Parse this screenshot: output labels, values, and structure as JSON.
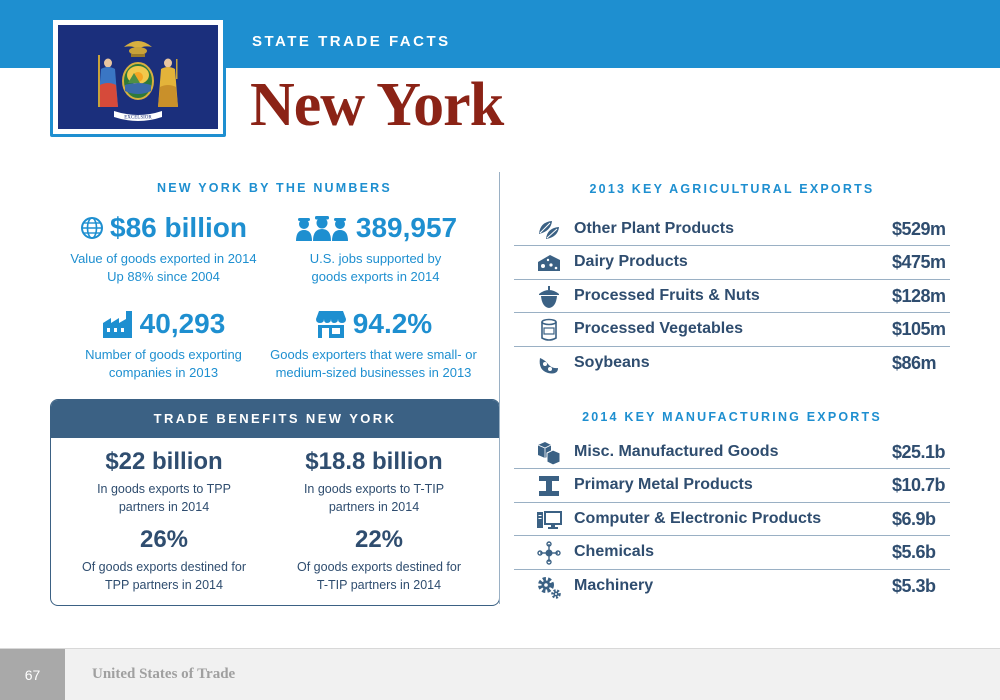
{
  "header": {
    "kicker": "STATE TRADE FACTS",
    "state_name": "New York",
    "flag_motto": "EXCELSIOR"
  },
  "by_the_numbers": {
    "heading": "NEW YORK BY THE NUMBERS",
    "stats": [
      {
        "icon": "globe-icon",
        "value": "$86 billion",
        "line1": "Value of goods exported in 2014",
        "line2": "Up 88% since 2004"
      },
      {
        "icon": "workers-icon",
        "value": "389,957",
        "line1": "U.S. jobs supported by",
        "line2": "goods exports in 2014"
      },
      {
        "icon": "factory-icon",
        "value": "40,293",
        "line1": "Number of goods exporting",
        "line2": "companies in 2013"
      },
      {
        "icon": "storefront-icon",
        "value": "94.2%",
        "line1": "Goods exporters that were small- or",
        "line2": "medium-sized businesses in 2013"
      }
    ]
  },
  "trade_benefits": {
    "heading": "TRADE BENEFITS NEW YORK",
    "stats": [
      {
        "value": "$22 billion",
        "line1": "In goods exports to TPP",
        "line2": "partners in 2014"
      },
      {
        "value": "$18.8 billion",
        "line1": "In goods exports to T-TIP",
        "line2": "partners in 2014"
      },
      {
        "value": "26%",
        "line1": "Of goods exports destined for",
        "line2": "TPP partners in 2014"
      },
      {
        "value": "22%",
        "line1": "Of goods exports destined for",
        "line2": "T-TIP partners in 2014"
      }
    ]
  },
  "agricultural": {
    "heading": "2013 KEY AGRICULTURAL EXPORTS",
    "rows": [
      {
        "icon": "leaves-icon",
        "label": "Other Plant Products",
        "value": "$529m"
      },
      {
        "icon": "cheese-icon",
        "label": "Dairy Products",
        "value": "$475m"
      },
      {
        "icon": "acorn-icon",
        "label": "Processed Fruits & Nuts",
        "value": "$128m"
      },
      {
        "icon": "can-icon",
        "label": "Processed Vegetables",
        "value": "$105m"
      },
      {
        "icon": "soybean-icon",
        "label": "Soybeans",
        "value": "$86m"
      }
    ]
  },
  "manufacturing": {
    "heading": "2014 KEY MANUFACTURING EXPORTS",
    "rows": [
      {
        "icon": "boxes-icon",
        "label": "Misc. Manufactured Goods",
        "value": "$25.1b"
      },
      {
        "icon": "i-beam-icon",
        "label": "Primary Metal Products",
        "value": "$10.7b"
      },
      {
        "icon": "computer-icon",
        "label": "Computer & Electronic Products",
        "value": "$6.9b"
      },
      {
        "icon": "molecule-icon",
        "label": "Chemicals",
        "value": "$5.6b"
      },
      {
        "icon": "gears-icon",
        "label": "Machinery",
        "value": "$5.3b"
      }
    ]
  },
  "footer": {
    "page_number": "67",
    "publication": "United States of Trade"
  },
  "colors": {
    "accent_blue": "#1e8fd0",
    "navy": "#3b6184",
    "title_red": "#8b2316"
  }
}
